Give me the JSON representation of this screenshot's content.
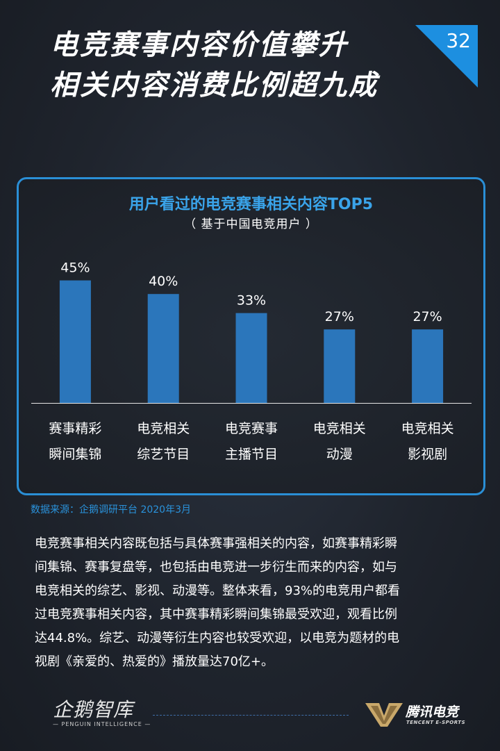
{
  "page": {
    "title_lines": [
      "电竞赛事内容价值攀升",
      "相关内容消费比例超九成"
    ],
    "page_number": "32"
  },
  "colors": {
    "accent_blue": "#2a8fd6",
    "bar_blue": "#2b76bb",
    "chart_title_blue": "#3aa4ea",
    "source_blue": "#2a93dc"
  },
  "chart_data": {
    "type": "bar",
    "title": "用户看过的电竞赛事相关内容TOP5",
    "subtitle": "（ 基于中国电竞用户 ）",
    "categories": [
      [
        "赛事精彩",
        "瞬间集锦"
      ],
      [
        "电竞相关",
        "综艺节目"
      ],
      [
        "电竞赛事",
        "主播节目"
      ],
      [
        "电竞相关",
        "动漫"
      ],
      [
        "电竞相关",
        "影视剧"
      ]
    ],
    "values": [
      45,
      40,
      33,
      27,
      27
    ],
    "value_labels": [
      "45%",
      "40%",
      "33%",
      "27%",
      "27%"
    ],
    "unit": "%",
    "ylim": [
      0,
      50
    ],
    "grid": false,
    "legend": "none"
  },
  "source": "数据来源：企鹅调研平台  2020年3月",
  "body_lines": [
    "电竞赛事相关内容既包括与具体赛事强相关的内容，如赛事精彩瞬",
    "间集锦、赛事复盘等，也包括由电竞进一步衍生而来的内容，如与",
    "电竞相关的综艺、影视、动漫等。整体来看，93%的电竞用户都看",
    "过电竞赛事相关内容，其中赛事精彩瞬间集锦最受欢迎，观看比例",
    "达44.8%。综艺、动漫等衍生内容也较受欢迎，以电竞为题材的电",
    "视剧《亲爱的、热爱的》播放量达70亿+。"
  ],
  "footer": {
    "left_logo_text": "企鹅智库",
    "left_logo_sub": "— PENGUIN INTELLIGENCE —",
    "right_logo_text": "腾讯电竞",
    "right_logo_sub": "TENCENT E-SPORTS"
  }
}
